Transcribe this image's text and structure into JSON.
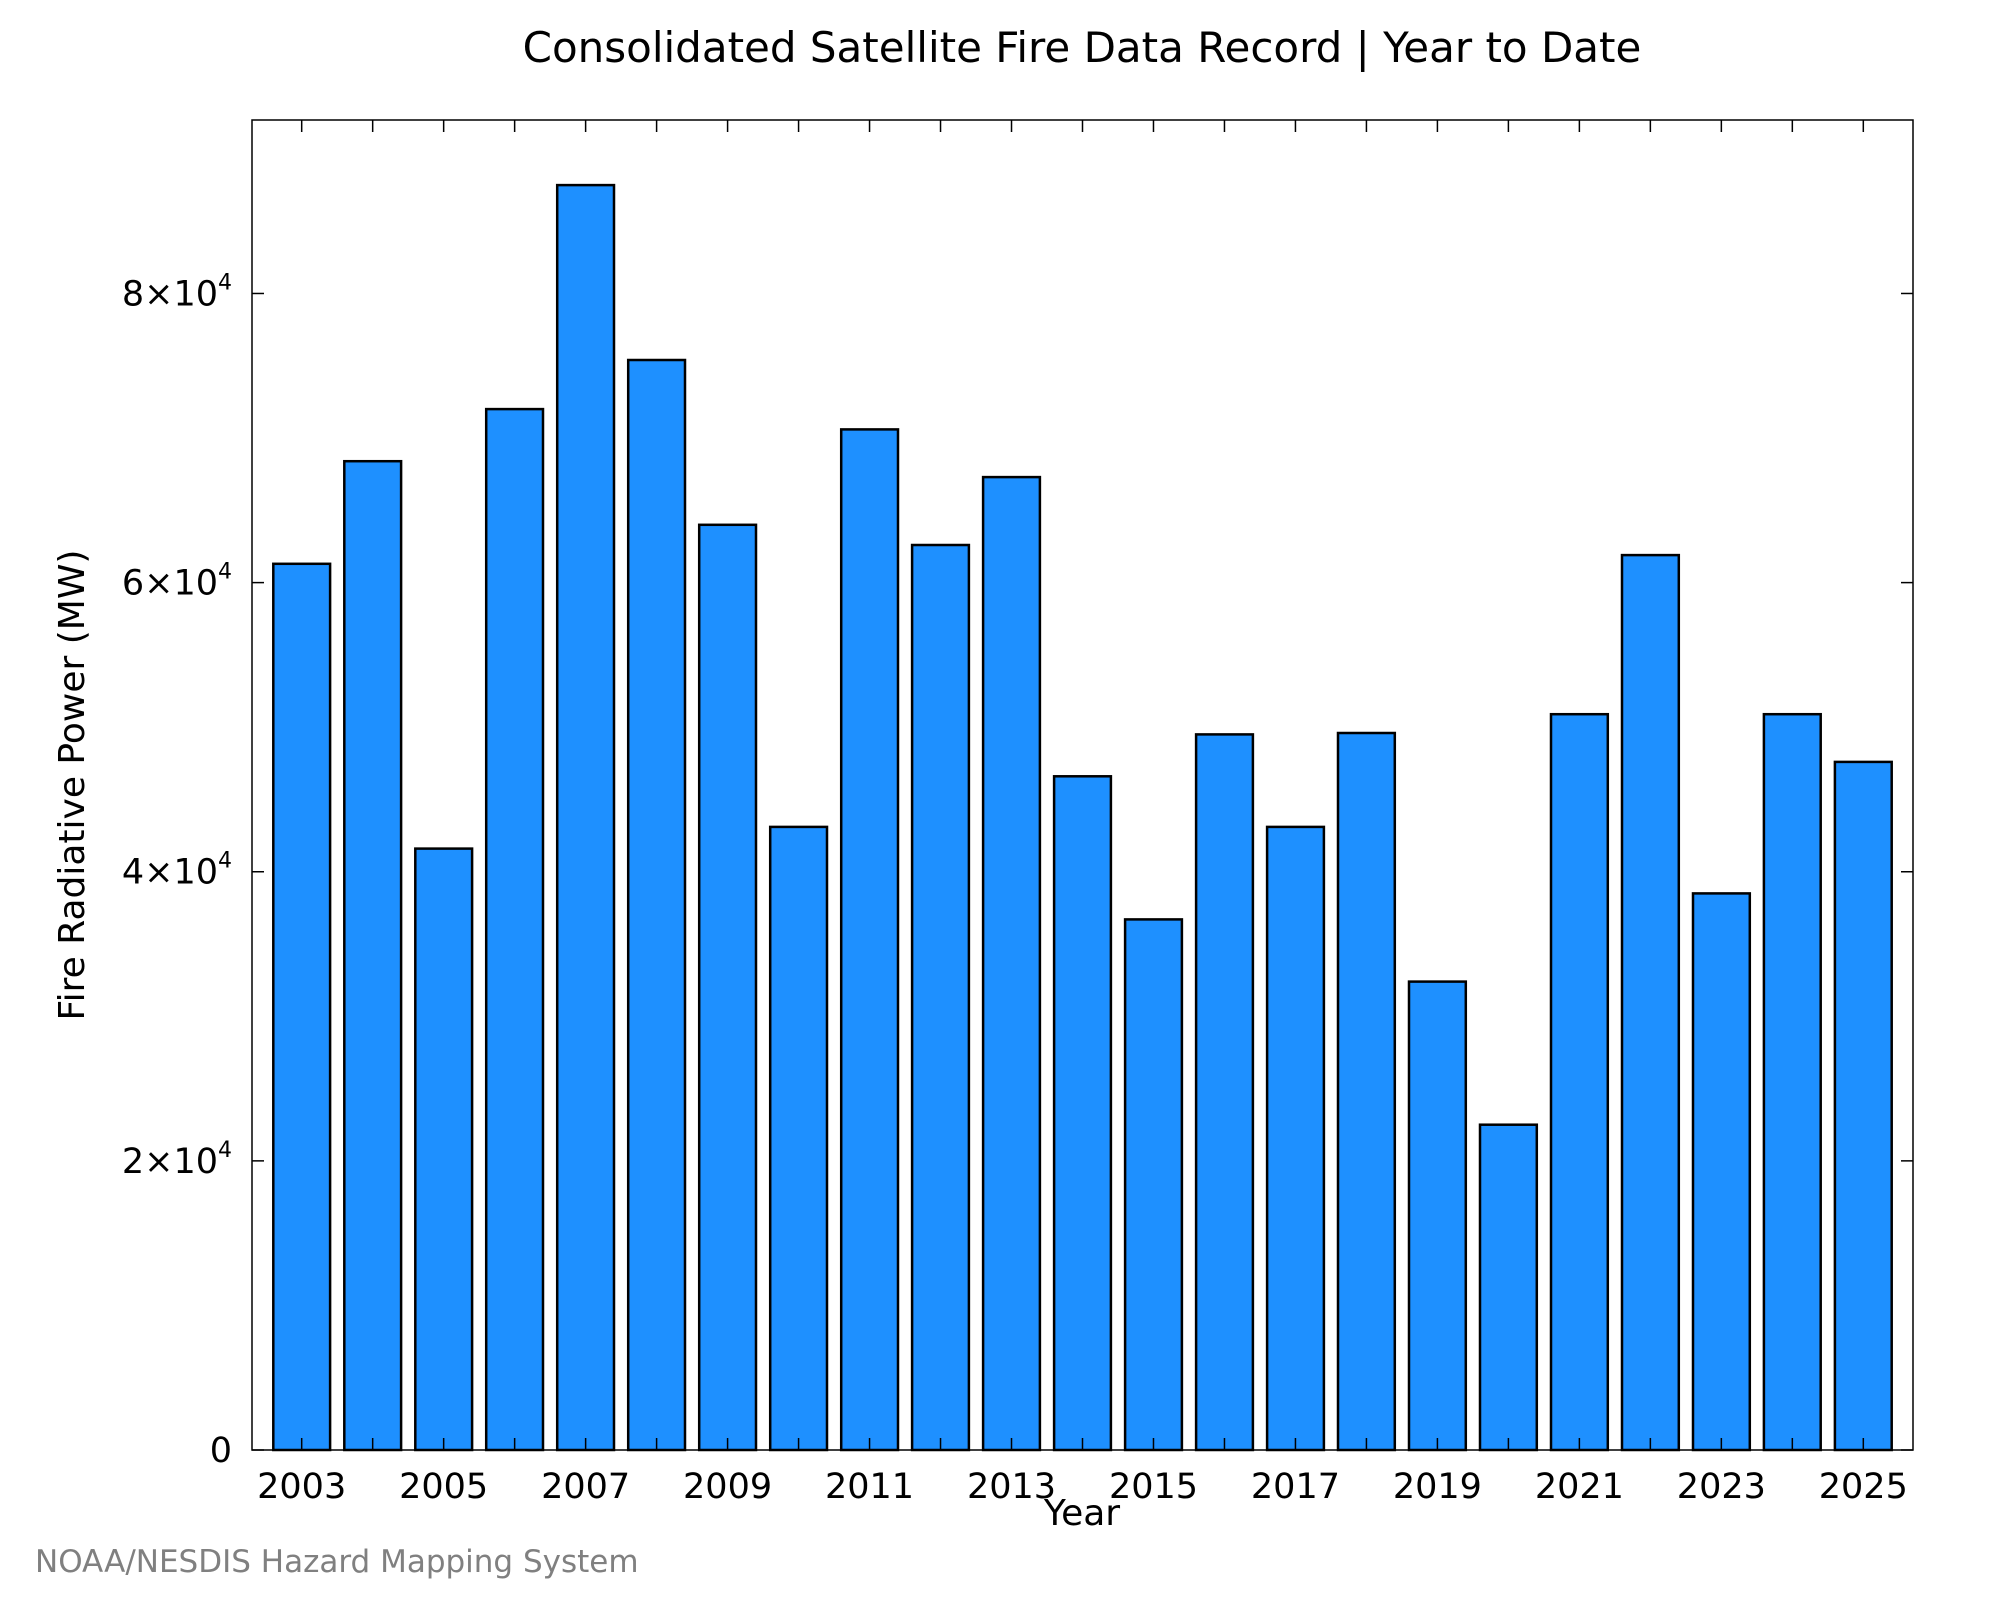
{
  "chart_data": {
    "type": "bar",
    "title": "Consolidated Satellite Fire Data Record | Year to Date",
    "xlabel": "Year",
    "ylabel": "Fire Radiative Power (MW)",
    "categories": [
      "2003",
      "2004",
      "2005",
      "2006",
      "2007",
      "2008",
      "2009",
      "2010",
      "2011",
      "2012",
      "2013",
      "2014",
      "2015",
      "2016",
      "2017",
      "2018",
      "2019",
      "2020",
      "2021",
      "2022",
      "2023",
      "2024",
      "2025"
    ],
    "values": [
      61300,
      68400,
      41600,
      72000,
      87500,
      75400,
      64000,
      43100,
      70600,
      62600,
      67300,
      46600,
      36700,
      49500,
      43100,
      49600,
      32400,
      22500,
      50900,
      61900,
      38500,
      50900,
      47600
    ],
    "ylim": [
      0,
      92000
    ],
    "x_tick_labels": [
      "2003",
      "2005",
      "2007",
      "2009",
      "2011",
      "2013",
      "2015",
      "2017",
      "2019",
      "2021",
      "2023",
      "2025"
    ],
    "y_ticks": [
      {
        "value": 0,
        "label": "0",
        "exp": ""
      },
      {
        "value": 20000,
        "label": "2×10",
        "exp": "4"
      },
      {
        "value": 40000,
        "label": "4×10",
        "exp": "4"
      },
      {
        "value": 60000,
        "label": "6×10",
        "exp": "4"
      },
      {
        "value": 80000,
        "label": "8×10",
        "exp": "4"
      }
    ],
    "bar_color": "#1e90ff",
    "bar_edge_color": "#000000",
    "grid": false,
    "legend": "none"
  },
  "credit": "NOAA/NESDIS Hazard Mapping System"
}
